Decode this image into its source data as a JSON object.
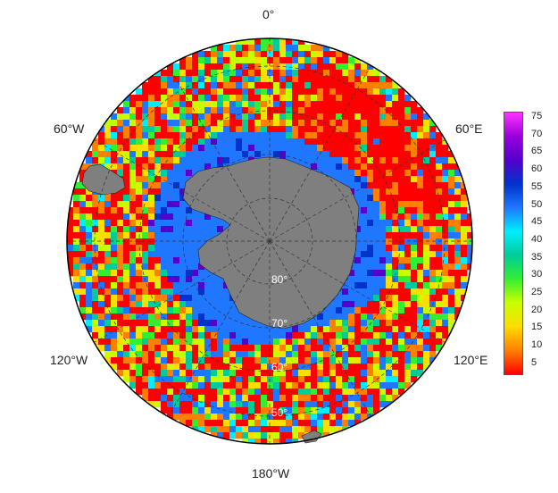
{
  "map": {
    "projection": "south-polar-stereographic",
    "longitude_labels": {
      "top": "0°",
      "upper_left": "60°W",
      "upper_right": "60°E",
      "lower_left": "120°W",
      "lower_right": "120°E",
      "bottom": "180°W"
    },
    "latitude_labels": [
      "80°",
      "70°",
      "60°",
      "50°"
    ],
    "colors": {
      "land": "#7f7f7f",
      "graticule": "#333333",
      "border": "#000000"
    }
  },
  "colorbar": {
    "ticks": [
      "75",
      "70",
      "65",
      "60",
      "55",
      "50",
      "45",
      "40",
      "35",
      "30",
      "25",
      "20",
      "15",
      "10",
      "5"
    ],
    "range": [
      0,
      77
    ],
    "palette": [
      "#ff0000",
      "#ff7f00",
      "#ffdd00",
      "#c8ff00",
      "#33ee33",
      "#00cc99",
      "#00eeff",
      "#1f77ff",
      "#0033cc",
      "#5500cc",
      "#9900dd",
      "#ff33ff"
    ]
  }
}
